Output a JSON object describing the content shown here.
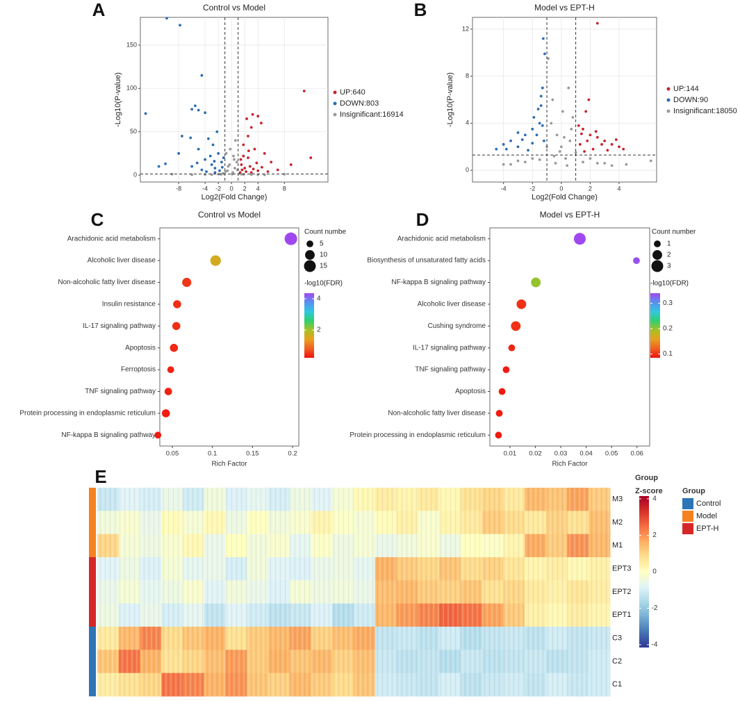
{
  "chart_data": [
    {
      "type": "volcano",
      "panel": "A",
      "title": "Control vs Model",
      "xlabel": "Log2(Fold Change)",
      "ylabel": "-Log10(P-value)",
      "xlim": [
        -13.8,
        14.6
      ],
      "ylim": [
        -8,
        182
      ],
      "xticks": [
        -8,
        -4,
        -2,
        0,
        2,
        4,
        8
      ],
      "yticks": [
        0,
        50,
        100,
        150
      ],
      "grid": true,
      "thresholds": {
        "x": [
          -1,
          1
        ],
        "y": 1.3
      },
      "series": [
        {
          "name": "UP:640",
          "color": "#c8232c",
          "x": [
            11,
            3.2,
            4,
            2.3,
            4.5,
            3,
            2.5,
            1.8,
            3.5,
            5,
            2.5,
            6,
            1.5,
            12,
            9,
            4,
            2,
            1.3,
            7,
            3,
            1.8,
            2.8,
            3.8,
            1.6,
            2.2,
            4.6,
            5.5,
            1.4,
            3.3,
            2.6
          ],
          "values": [
            97,
            70,
            68,
            65,
            60,
            55,
            45,
            35,
            30,
            25,
            20,
            15,
            12,
            20,
            12,
            5,
            8,
            3,
            6,
            3,
            22,
            10,
            14,
            6,
            4,
            9,
            4,
            18,
            7,
            28
          ]
        },
        {
          "name": "DOWN:803",
          "color": "#2b6cb0",
          "x": [
            -9.8,
            -7.8,
            -4.5,
            -5.5,
            -6,
            -5,
            -4,
            -13,
            -7.5,
            -6.2,
            -8,
            -10,
            -5,
            -3.5,
            -2.8,
            -2,
            -4,
            -3,
            -2.5,
            -1.8,
            -6,
            -1.5,
            -3.2,
            -5.2,
            -2.2,
            -1.2,
            -2.5,
            -4.5,
            -11,
            -3.8,
            -1.4,
            -2.6
          ],
          "values": [
            181,
            173,
            115,
            80,
            76,
            75,
            72,
            71,
            45,
            43,
            25,
            13,
            30,
            42,
            35,
            25,
            18,
            12,
            8,
            5,
            10,
            15,
            22,
            14,
            50,
            20,
            3,
            6,
            10,
            4,
            9,
            16
          ]
        },
        {
          "name": "Insignificant:16914",
          "color": "#9a9a9a",
          "x": [
            -1.3,
            -0.5,
            0.5,
            -0.8,
            0.2,
            0.8,
            -0.2,
            0.6,
            1.5,
            -2,
            -3,
            3,
            5,
            -6,
            0.1,
            0.4,
            -0.6,
            8,
            -9,
            -0.3,
            0.3,
            -0.9,
            0.9,
            -1.6,
            1.8,
            -4,
            4
          ],
          "values": [
            2,
            10,
            8,
            25,
            3,
            15,
            30,
            40,
            1,
            1,
            0.5,
            0.5,
            0.3,
            0.4,
            1,
            18,
            5,
            1,
            1,
            12,
            22,
            4,
            6,
            0.8,
            0.7,
            0.6,
            0.4
          ]
        }
      ]
    },
    {
      "type": "volcano",
      "panel": "B",
      "title": "Model vs EPT-H",
      "xlabel": "Log2(Fold Change)",
      "ylabel": "-Log10(P-value)",
      "xlim": [
        -6.15,
        6.6
      ],
      "ylim": [
        -1,
        13
      ],
      "xticks": [
        -4,
        -2,
        0,
        2,
        4
      ],
      "yticks": [
        0,
        4,
        8,
        12
      ],
      "grid": true,
      "thresholds": {
        "x": [
          -1,
          1
        ],
        "y": 1.3
      },
      "series": [
        {
          "name": "UP:144",
          "color": "#c8232c",
          "x": [
            2.5,
            1.9,
            1.7,
            1.2,
            1.5,
            2,
            2.5,
            3,
            3.5,
            4,
            4.3,
            1.3,
            2.8,
            1.8,
            2.2,
            3.8,
            1.6,
            1.4,
            2.4,
            3.2
          ],
          "values": [
            12.5,
            6,
            5,
            3.8,
            3.5,
            3,
            2.8,
            2.5,
            2.2,
            2,
            1.8,
            2.2,
            2.2,
            2.5,
            1.8,
            2.6,
            1.6,
            3.1,
            3.3,
            1.7
          ]
        },
        {
          "name": "DOWN:90",
          "color": "#2b6cb0",
          "x": [
            -1.25,
            -1.15,
            -1.3,
            -1.4,
            -1.4,
            -1.6,
            -1.9,
            -1.5,
            -2,
            -2.5,
            -3,
            -3.5,
            -4,
            -4.5,
            -3,
            -2,
            -2.7,
            -1.7,
            -3.8,
            -2.3,
            -1.2,
            -1.3
          ],
          "values": [
            11.2,
            9.9,
            7,
            6.3,
            5.5,
            5.2,
            4.5,
            4,
            3.5,
            3,
            3.2,
            2.5,
            2.2,
            1.8,
            2,
            2.3,
            2.6,
            3,
            1.8,
            1.7,
            2.5,
            3.8
          ]
        },
        {
          "name": "Insignificant:18050",
          "color": "#9a9a9a",
          "x": [
            -0.9,
            -0.6,
            0.1,
            0.5,
            0.8,
            -0.3,
            0,
            0.6,
            -1,
            1,
            -2,
            2,
            -3,
            3,
            -4,
            4.5,
            6.2,
            0.3,
            -0.5,
            -1.5,
            1.5,
            0.7,
            -0.7,
            -0.1,
            0.4,
            -0.4,
            0.2,
            -2.5,
            2.5,
            -3.5,
            3.5
          ],
          "values": [
            9.5,
            6,
            5,
            7,
            4.5,
            3,
            2,
            2.5,
            2,
            1.5,
            1,
            1,
            0.8,
            0.6,
            0.5,
            0.5,
            0.8,
            1,
            1.2,
            0.9,
            0.7,
            3.5,
            4,
            1.6,
            0.4,
            0.6,
            2.8,
            0.7,
            0.6,
            0.5,
            0.4
          ]
        }
      ]
    },
    {
      "type": "bubble",
      "panel": "C",
      "title": "Control vs Model",
      "xlabel": "Rich Factor",
      "categories": [
        "Arachidonic acid metabolism",
        "Alcoholic liver disease",
        "Non-alcoholic fatty liver disease",
        "Insulin resistance",
        "IL-17 signaling pathway",
        "Apoptosis",
        "Ferroptosis",
        "TNF signaling pathway",
        "Protein processing in endoplasmic reticulum",
        "NF-kappa B signaling pathway"
      ],
      "values": [
        0.198,
        0.104,
        0.068,
        0.056,
        0.055,
        0.052,
        0.048,
        0.045,
        0.042,
        0.032
      ],
      "sizes": [
        17,
        12,
        9,
        7,
        7,
        7,
        5,
        6,
        7,
        5
      ],
      "color_values": [
        4.4,
        1.6,
        0.5,
        0.45,
        0.45,
        0.4,
        0.35,
        0.35,
        0.3,
        0.3
      ],
      "xlim": [
        0.0344,
        0.2078
      ],
      "xticks": [
        0.05,
        0.1,
        0.15,
        0.2
      ],
      "size_legend": {
        "title": "Count numbe",
        "values": [
          5,
          10,
          15
        ]
      },
      "colorbar": {
        "title": "-log10(FDR)",
        "lim": [
          0.22,
          4.36
        ],
        "ticks": [
          2,
          4
        ]
      },
      "colorscale": [
        "#f01010",
        "#f06020",
        "#e8a020",
        "#a8c020",
        "#30d070",
        "#30c8e0",
        "#5890f0",
        "#a048f0"
      ]
    },
    {
      "type": "bubble",
      "panel": "D",
      "title": "Model vs EPT-H",
      "xlabel": "Rich Factor",
      "categories": [
        "Arachidonic acid metabolism",
        "Biosynthesis of unsaturated fatty acids",
        "NF-kappa B signaling pathway",
        "Alcoholic liver disease",
        "Cushing syndrome",
        "IL-17 signaling pathway",
        "TNF signaling pathway",
        "Apoptosis",
        "Non-alcoholic fatty liver disease",
        "Protein processing in endoplasmic reticulum"
      ],
      "values": [
        0.0375,
        0.0598,
        0.0202,
        0.0145,
        0.0123,
        0.0107,
        0.0085,
        0.0069,
        0.0058,
        0.0055
      ],
      "sizes": [
        3,
        1,
        2,
        2,
        2,
        1,
        1,
        1,
        1,
        1
      ],
      "color_values": [
        0.34,
        0.335,
        0.2,
        0.1,
        0.1,
        0.095,
        0.09,
        0.09,
        0.09,
        0.09
      ],
      "xlim": [
        0.0021,
        0.065
      ],
      "xticks": [
        0.01,
        0.02,
        0.03,
        0.04,
        0.05,
        0.06
      ],
      "size_legend": {
        "title": "Count number",
        "values": [
          1,
          2,
          3
        ]
      },
      "colorbar": {
        "title": "-log10(FDR)",
        "lim": [
          0.085,
          0.34
        ],
        "ticks": [
          0.1,
          0.2,
          0.3
        ]
      },
      "colorscale": [
        "#f01010",
        "#f06020",
        "#e8a020",
        "#a8c020",
        "#30d070",
        "#30c8e0",
        "#5890f0",
        "#a048f0"
      ]
    },
    {
      "type": "heatmap",
      "panel": "E",
      "rows": [
        "M3",
        "M2",
        "M1",
        "EPT3",
        "EPT2",
        "EPT1",
        "C3",
        "C2",
        "C1"
      ],
      "row_groups": [
        1,
        1,
        1,
        2,
        2,
        2,
        0,
        0,
        0
      ],
      "groups": {
        "title": "Group",
        "names": [
          "Control",
          "Model",
          "EPT-H"
        ],
        "colors": [
          "#2e75b6",
          "#f58220",
          "#d62728"
        ]
      },
      "colorbar": {
        "group_title": "Group",
        "title": "Z-score",
        "lim": [
          -4.15,
          4.15
        ],
        "ticks": [
          -4,
          -2,
          0,
          2,
          4
        ]
      },
      "colorscale": [
        "#313695",
        "#4575b4",
        "#74add1",
        "#abd9e9",
        "#e0f3f8",
        "#ffffbf",
        "#fee090",
        "#fdae61",
        "#f46d43",
        "#d73027",
        "#a50026"
      ],
      "values": [
        [
          -1.2,
          -0.8,
          -1.0,
          -0.6,
          -1.1,
          -0.4,
          -0.9,
          -0.7,
          -1.0,
          -0.5,
          -0.8,
          -0.3,
          0.2,
          0.5,
          0.3,
          0.6,
          0.2,
          0.8,
          1.0,
          0.6,
          1.5,
          1.3,
          1.8,
          1.2
        ],
        [
          -0.4,
          -0.2,
          -0.6,
          0.1,
          -0.3,
          0.2,
          -0.5,
          0.0,
          -0.4,
          -0.2,
          0.3,
          -0.1,
          -0.3,
          0.1,
          0.4,
          -0.2,
          0.3,
          0.6,
          1.2,
          0.9,
          0.6,
          1.1,
          0.8,
          1.4
        ],
        [
          1.0,
          -0.3,
          -0.5,
          -0.2,
          0.2,
          -0.6,
          0.0,
          -0.4,
          -0.2,
          -0.7,
          -0.1,
          -0.5,
          -0.3,
          -0.6,
          -0.4,
          -0.2,
          -0.5,
          0.0,
          -0.1,
          0.3,
          1.7,
          1.2,
          2.0,
          1.5
        ],
        [
          -0.8,
          -0.5,
          -0.9,
          -0.3,
          -0.7,
          -0.6,
          -1.0,
          -0.4,
          -0.8,
          -0.9,
          -0.6,
          -0.5,
          -0.7,
          1.6,
          1.2,
          1.0,
          1.3,
          0.9,
          1.1,
          0.7,
          0.3,
          0.5,
          0.2,
          0.4
        ],
        [
          -0.6,
          -0.3,
          -0.7,
          -0.5,
          -0.2,
          -0.8,
          -0.4,
          -0.6,
          -0.9,
          -0.3,
          -0.5,
          -0.4,
          -0.6,
          1.4,
          1.5,
          1.2,
          1.1,
          1.3,
          0.8,
          1.0,
          0.6,
          0.4,
          0.7,
          0.5
        ],
        [
          -0.5,
          -0.9,
          -0.6,
          -1.0,
          -0.7,
          -1.3,
          -0.8,
          -1.1,
          -1.4,
          -1.2,
          -0.9,
          -1.5,
          -1.1,
          1.5,
          1.9,
          2.2,
          2.6,
          2.4,
          1.8,
          1.2,
          0.4,
          0.2,
          0.5,
          0.3
        ],
        [
          0.6,
          1.5,
          2.2,
          0.9,
          1.3,
          1.6,
          0.8,
          1.2,
          1.5,
          1.8,
          1.1,
          1.4,
          1.7,
          -1.3,
          -1.2,
          -1.4,
          -1.1,
          -1.5,
          -1.3,
          -1.2,
          -1.4,
          -1.1,
          -1.3,
          -1.2
        ],
        [
          1.3,
          2.4,
          1.6,
          0.8,
          1.0,
          1.4,
          1.9,
          1.2,
          1.6,
          1.3,
          1.5,
          1.1,
          1.4,
          -1.2,
          -1.4,
          -1.3,
          -1.5,
          -1.2,
          -1.4,
          -1.3,
          -1.2,
          -1.4,
          -1.3,
          -1.1
        ],
        [
          0.5,
          0.8,
          1.0,
          2.4,
          2.2,
          1.6,
          2.0,
          1.3,
          1.1,
          1.5,
          1.2,
          0.9,
          1.3,
          -1.1,
          -1.2,
          -1.3,
          -1.0,
          -1.4,
          -1.2,
          -1.1,
          -1.3,
          -1.0,
          -1.2,
          -1.1
        ]
      ]
    }
  ]
}
